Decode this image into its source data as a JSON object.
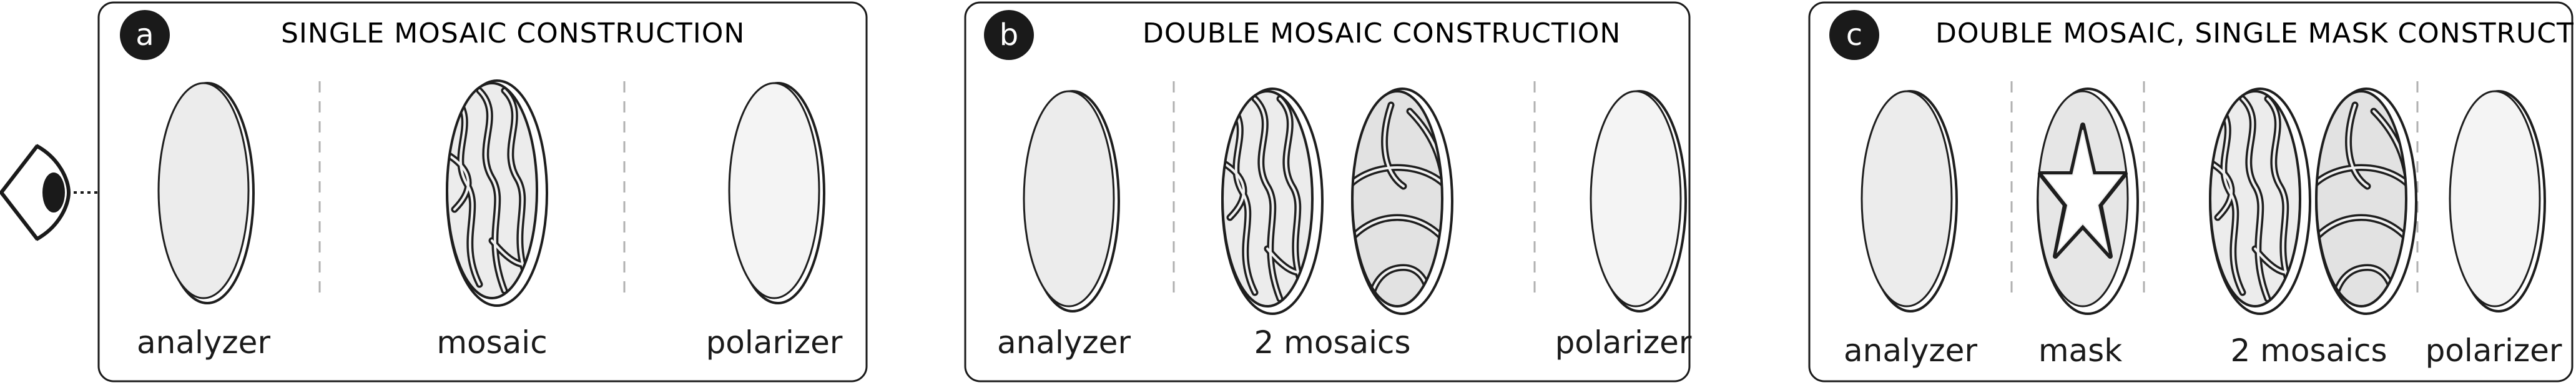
{
  "panels": [
    {
      "badge": "a",
      "title": "SINGLE MOSAIC CONSTRUCTION",
      "labels": [
        "analyzer",
        "mosaic",
        "polarizer"
      ]
    },
    {
      "badge": "b",
      "title": "DOUBLE MOSAIC CONSTRUCTION",
      "labels": [
        "analyzer",
        "2 mosaics",
        "polarizer"
      ]
    },
    {
      "badge": "c",
      "title": "DOUBLE MOSAIC, SINGLE MASK CONSTRUCTION",
      "labels": [
        "analyzer",
        "mask",
        "2 mosaics",
        "polarizer"
      ]
    }
  ],
  "icons": [
    "eye-icon"
  ],
  "colors": {
    "badge": "#1a1a1a",
    "frame": "#1a1a1a",
    "divider": "#b0b0b0"
  }
}
